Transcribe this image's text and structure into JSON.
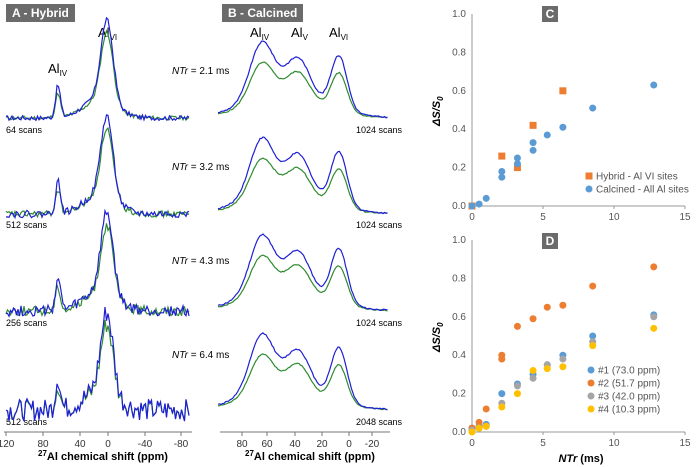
{
  "panelA": {
    "title": "A - Hybrid",
    "peak_iv": "Al",
    "peak_iv_sub": "IV",
    "peak_vi": "Al",
    "peak_vi_sub": "VI",
    "scans": [
      "64 scans",
      "512 scans",
      "256 scans",
      "512 scans"
    ],
    "xticks": [
      "120",
      "80",
      "40",
      "0",
      "-40",
      "-80"
    ],
    "xlabel_sup": "27",
    "xlabel": "Al chemical shift (ppm)"
  },
  "panelB": {
    "title": "B - Calcined",
    "peaks": [
      {
        "main": "Al",
        "sub": "IV"
      },
      {
        "main": "Al",
        "sub": "V"
      },
      {
        "main": "Al",
        "sub": "VI"
      }
    ],
    "ntr_label": "NTr",
    "ntr": [
      " = 2.1 ms",
      " = 3.2 ms",
      " = 4.3 ms",
      " = 6.4 ms"
    ],
    "scans": [
      "1024 scans",
      "1024 scans",
      "1024 scans",
      "2048 scans"
    ],
    "xticks": [
      "80",
      "60",
      "40",
      "20",
      "0",
      "-20"
    ],
    "xlabel_sup": "27",
    "xlabel": "Al chemical shift (ppm)"
  },
  "colors": {
    "blue": "#1f1fd6",
    "green": "#2e8b2e",
    "orange": "#ed7d31",
    "lightblue": "#5b9bd5",
    "gray": "#a5a5a5",
    "gold": "#ffc000"
  },
  "chart_data": [
    {
      "panel": "C",
      "type": "scatter",
      "ylabel_main": "ΔS/S",
      "ylabel_sub": "0",
      "xlim": [
        0,
        15
      ],
      "ylim": [
        0,
        1
      ],
      "xticks": [
        "0",
        "5",
        "10",
        "15"
      ],
      "yticks": [
        "0.0",
        "0.2",
        "0.4",
        "0.6",
        "0.8",
        "1.0"
      ],
      "series": [
        {
          "name": "Hybrid - Al VI sites",
          "marker": "square",
          "color": "#ed7d31",
          "x": [
            0.0,
            2.1,
            3.2,
            4.3,
            6.4
          ],
          "y": [
            0.0,
            0.26,
            0.2,
            0.42,
            0.6
          ]
        },
        {
          "name": "Calcined - All Al sites",
          "marker": "circle",
          "color": "#5b9bd5",
          "x": [
            0.0,
            0.5,
            1.0,
            2.1,
            2.1,
            3.2,
            3.2,
            4.3,
            4.3,
            5.3,
            6.4,
            8.5,
            12.8
          ],
          "y": [
            0.0,
            0.01,
            0.04,
            0.15,
            0.18,
            0.22,
            0.25,
            0.29,
            0.33,
            0.37,
            0.41,
            0.51,
            0.63
          ]
        }
      ]
    },
    {
      "panel": "D",
      "type": "scatter",
      "xlabel": "NTr",
      "xlabel_unit": " (ms)",
      "ylabel_main": "ΔS/S",
      "ylabel_sub": "0",
      "xlim": [
        0,
        15
      ],
      "ylim": [
        0,
        1
      ],
      "xticks": [
        "0",
        "5",
        "10",
        "15"
      ],
      "yticks": [
        "0.0",
        "0.2",
        "0.4",
        "0.6",
        "0.8",
        "1.0"
      ],
      "series": [
        {
          "name": "#1 (73.0 ppm)",
          "color": "#5b9bd5",
          "x": [
            0.0,
            0.5,
            1.0,
            2.1,
            3.2,
            4.3,
            5.3,
            6.4,
            8.5,
            12.8
          ],
          "y": [
            0.02,
            0.03,
            0.04,
            0.2,
            0.25,
            0.3,
            0.35,
            0.4,
            0.5,
            0.61
          ]
        },
        {
          "name": "#2 (51.7 ppm)",
          "color": "#ed7d31",
          "x": [
            0.0,
            0.5,
            1.0,
            2.1,
            2.1,
            3.2,
            4.3,
            5.3,
            6.4,
            8.5,
            12.8
          ],
          "y": [
            0.02,
            0.05,
            0.12,
            0.38,
            0.4,
            0.55,
            0.59,
            0.65,
            0.66,
            0.76,
            0.86
          ]
        },
        {
          "name": "#3 (42.0 ppm)",
          "color": "#a5a5a5",
          "x": [
            0.0,
            0.5,
            1.0,
            2.1,
            3.2,
            4.3,
            5.3,
            6.4,
            8.5,
            12.8
          ],
          "y": [
            0.01,
            0.02,
            0.03,
            0.15,
            0.24,
            0.28,
            0.35,
            0.38,
            0.47,
            0.6
          ]
        },
        {
          "name": "#4 (10.3 ppm)",
          "color": "#ffc000",
          "x": [
            0.0,
            0.5,
            1.0,
            2.1,
            3.2,
            4.3,
            5.3,
            6.4,
            8.5,
            12.8
          ],
          "y": [
            0.0,
            0.02,
            0.03,
            0.13,
            0.2,
            0.32,
            0.33,
            0.34,
            0.45,
            0.54
          ]
        }
      ]
    }
  ]
}
